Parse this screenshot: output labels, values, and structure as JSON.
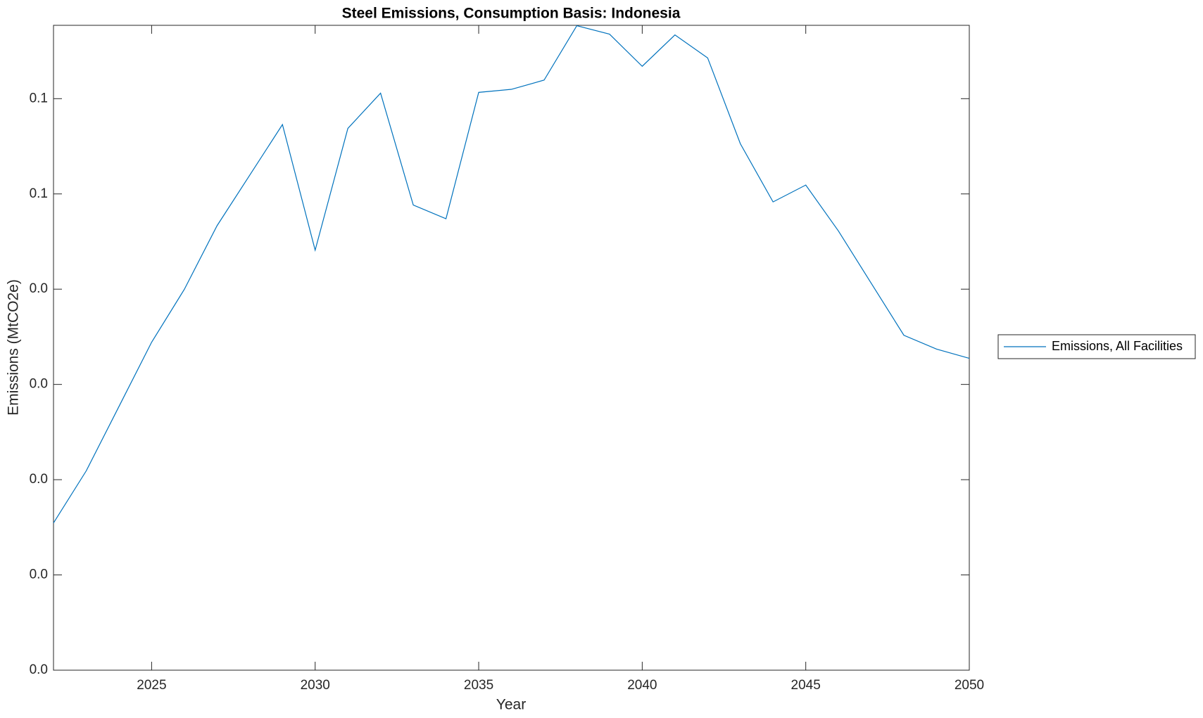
{
  "chart_data": {
    "type": "line",
    "title": "Steel Emissions, Consumption Basis: Indonesia",
    "x_label": "Year",
    "y_label": "Emissions (MtCO2e)",
    "x": [
      2022,
      2023,
      2024,
      2025,
      2026,
      2027,
      2028,
      2029,
      2030,
      2031,
      2032,
      2033,
      2034,
      2035,
      2036,
      2037,
      2038,
      2039,
      2040,
      2041,
      2042,
      2043,
      2044,
      2045,
      2046,
      2047,
      2048,
      2049,
      2050
    ],
    "series": [
      {
        "name": "Emissions, All Facilities",
        "color": "#0072bd",
        "values": [
          0.01545,
          0.02092,
          0.02767,
          0.03443,
          0.03998,
          0.04666,
          0.05197,
          0.05728,
          0.04409,
          0.05688,
          0.06058,
          0.04883,
          0.04739,
          0.06066,
          0.06098,
          0.06195,
          0.06766,
          0.06677,
          0.0634,
          0.06669,
          0.06428,
          0.05527,
          0.04916,
          0.05093,
          0.0461,
          0.04063,
          0.03516,
          0.03371,
          0.03274
        ]
      }
    ],
    "xlim": [
      2022,
      2050
    ],
    "xticks": [
      2025,
      2030,
      2035,
      2040,
      2045,
      2050
    ],
    "ylim": [
      0,
      0.0677
    ],
    "yticks": [
      {
        "value": 0,
        "label": "0.0"
      },
      {
        "value": 0.01,
        "label": "0.0"
      },
      {
        "value": 0.02,
        "label": "0.0"
      },
      {
        "value": 0.03,
        "label": "0.0"
      },
      {
        "value": 0.04,
        "label": "0.0"
      },
      {
        "value": 0.05,
        "label": "0.1"
      },
      {
        "value": 0.06,
        "label": "0.1"
      }
    ],
    "grid": false,
    "legend": "outside-right"
  }
}
